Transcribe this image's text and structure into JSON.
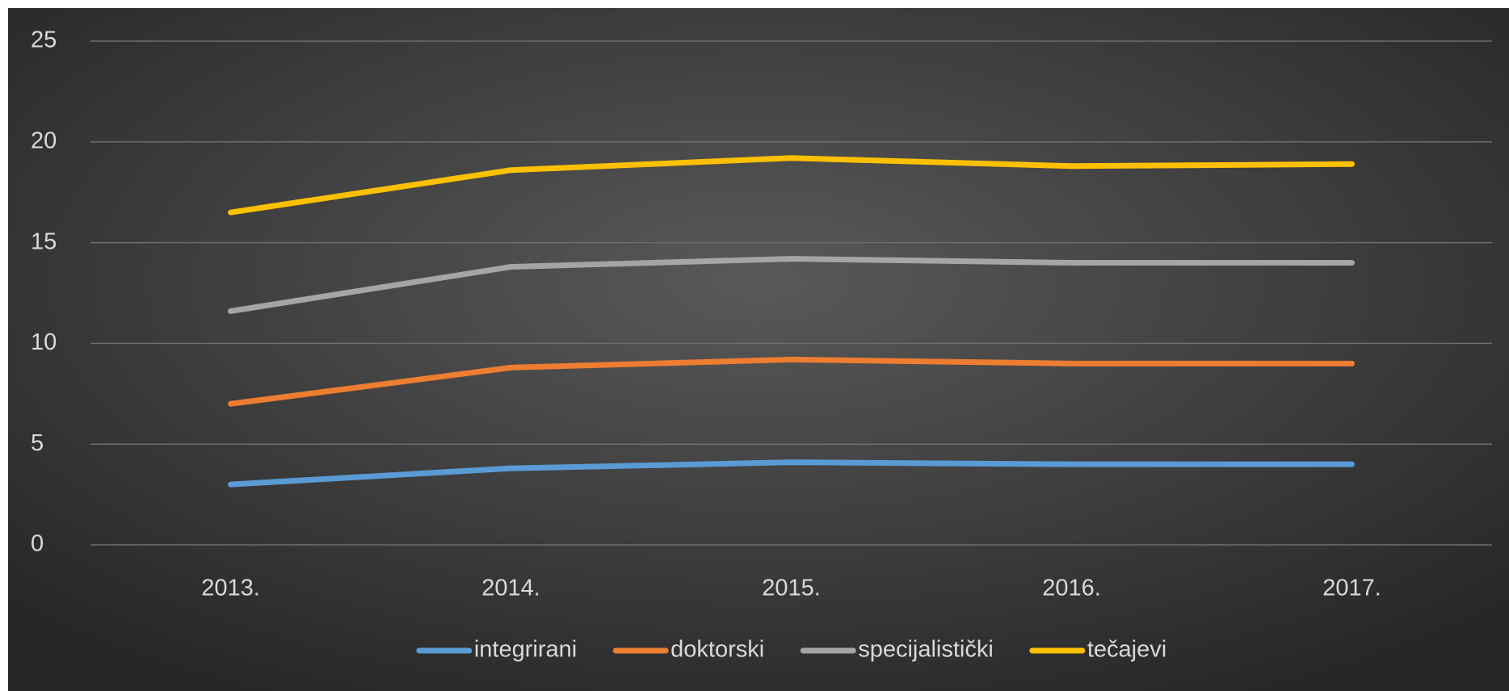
{
  "chart_data": {
    "type": "line",
    "categories": [
      "2013.",
      "2014.",
      "2015.",
      "2016.",
      "2017."
    ],
    "series": [
      {
        "name": "integrirani",
        "color": "#5b9bd5",
        "values": [
          3.0,
          3.8,
          4.1,
          4.0,
          4.0
        ]
      },
      {
        "name": "doktorski",
        "color": "#ed7d31",
        "values": [
          7.0,
          8.8,
          9.2,
          9.0,
          9.0
        ]
      },
      {
        "name": "specijalistički",
        "color": "#a5a5a5",
        "values": [
          11.6,
          13.8,
          14.2,
          14.0,
          14.0
        ]
      },
      {
        "name": "tečajevi",
        "color": "#ffc000",
        "values": [
          16.5,
          18.6,
          19.2,
          18.8,
          18.9
        ]
      }
    ],
    "ylim": [
      0,
      25
    ],
    "yticks": [
      0,
      5,
      10,
      15,
      20,
      25
    ],
    "grid": true,
    "legend": "bottom"
  }
}
